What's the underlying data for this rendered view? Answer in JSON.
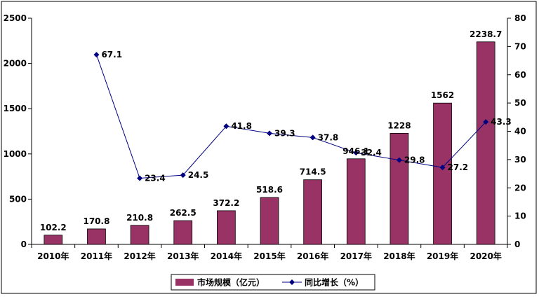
{
  "chart_data": {
    "type": "bar",
    "categories": [
      "2010年",
      "2011年",
      "2012年",
      "2013年",
      "2014年",
      "2015年",
      "2016年",
      "2017年",
      "2018年",
      "2019年",
      "2020年"
    ],
    "series": [
      {
        "name": "市场规模（亿元）",
        "type": "bar",
        "axis": "left",
        "color": "#993366",
        "values": [
          102.2,
          170.8,
          210.8,
          262.5,
          372.2,
          518.6,
          714.5,
          946.1,
          1228,
          1562,
          2238.7
        ],
        "labels": [
          "102.2",
          "170.8",
          "210.8",
          "262.5",
          "372.2",
          "518.6",
          "714.5",
          "946.1",
          "1228",
          "1562",
          "2238.7"
        ]
      },
      {
        "name": "同比增长（%）",
        "type": "line",
        "axis": "right",
        "color": "#000080",
        "values": [
          null,
          67.1,
          23.4,
          24.5,
          41.8,
          39.3,
          37.8,
          32.4,
          29.8,
          27.2,
          43.3
        ],
        "labels": [
          "",
          "67.1",
          "23.4",
          "24.5",
          "41.8",
          "39.3",
          "37.8",
          "32.4",
          "29.8",
          "27.2",
          "43.3"
        ]
      }
    ],
    "y_left": {
      "min": 0,
      "max": 2500,
      "ticks": [
        "0",
        "500",
        "1000",
        "1500",
        "2000",
        "2500"
      ]
    },
    "y_right": {
      "min": 0,
      "max": 80,
      "ticks": [
        "0",
        "10",
        "20",
        "30",
        "40",
        "50",
        "60",
        "70",
        "80"
      ]
    },
    "grid": false,
    "legend_position": "bottom"
  }
}
